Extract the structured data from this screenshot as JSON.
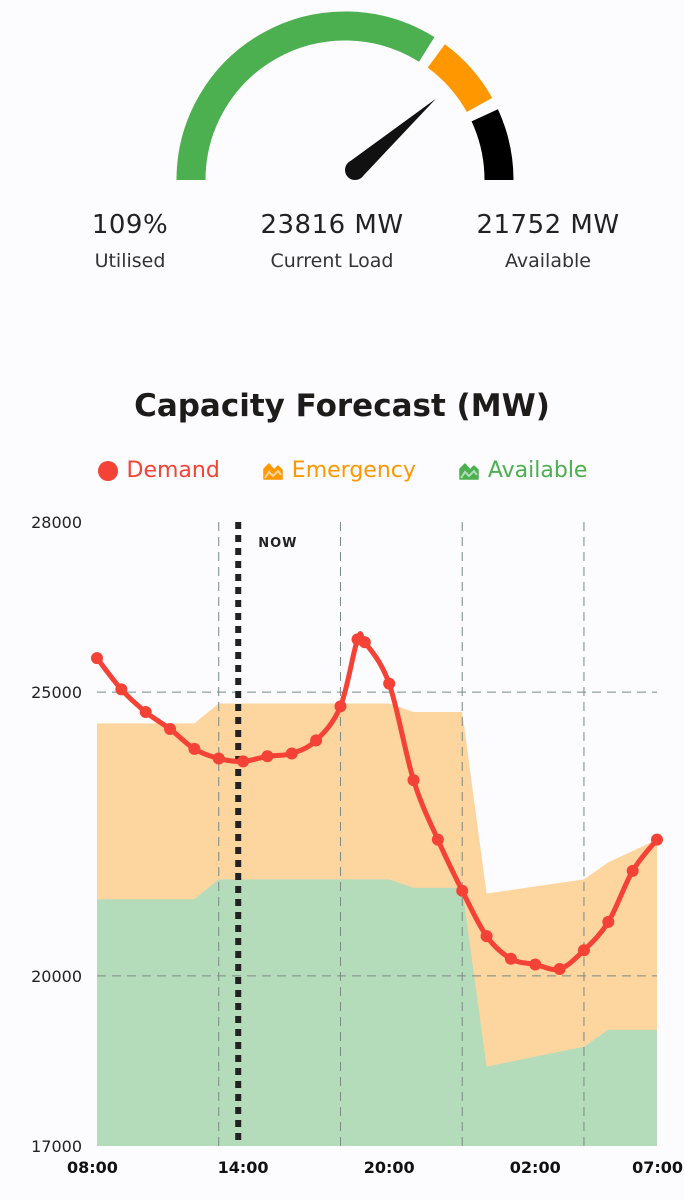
{
  "gauge": {
    "needle_fraction": 0.77,
    "bands": [
      {
        "name": "normal",
        "from": 0.0,
        "to": 0.69,
        "color": "#4caf50"
      },
      {
        "name": "warning",
        "from": 0.69,
        "to": 0.85,
        "color": "#ff9800"
      },
      {
        "name": "critical",
        "from": 0.85,
        "to": 1.0,
        "color": "#000000"
      }
    ]
  },
  "stats": [
    {
      "value": "109%",
      "label": "Utilised"
    },
    {
      "value": "23816 MW",
      "label": "Current Load"
    },
    {
      "value": "21752 MW",
      "label": "Available"
    }
  ],
  "legend": [
    {
      "label": "Demand",
      "color": "#f44336",
      "icon": "circle-icon"
    },
    {
      "label": "Emergency",
      "color": "#ff9800",
      "icon": "area-chart-icon"
    },
    {
      "label": "Available",
      "color": "#4caf50",
      "icon": "area-chart-icon"
    }
  ],
  "chart_data": {
    "type": "area",
    "title": "Capacity Forecast (MW)",
    "ylim": [
      17000,
      28000
    ],
    "yticks": [
      "28000",
      "25000",
      "20000",
      "17000"
    ],
    "ytick_values": [
      28000,
      25000,
      20000,
      17000
    ],
    "xlim": [
      0,
      23
    ],
    "xtick_labels": [
      "08:00",
      "14:00",
      "20:00",
      "02:00",
      "07:00"
    ],
    "xtick_hours": [
      0,
      6,
      12,
      18,
      23
    ],
    "vgrid_hours": [
      5,
      10,
      15,
      20
    ],
    "now_hour": 5.8,
    "now_label": "NOW",
    "colors": {
      "demand": "#f44336",
      "emergency": "#fdd59f",
      "available": "#b5dcba"
    },
    "series": [
      {
        "name": "Demand",
        "x": [
          0,
          1,
          2,
          3,
          4,
          5,
          6,
          7,
          8,
          9,
          10,
          10.7,
          11,
          12,
          13,
          14,
          15,
          16,
          17,
          18,
          19,
          20,
          21,
          22,
          23
        ],
        "values": [
          25600,
          25050,
          24650,
          24350,
          24000,
          23830,
          23780,
          23870,
          23920,
          24150,
          24750,
          25930,
          25880,
          25150,
          23450,
          22400,
          21500,
          20700,
          20300,
          20200,
          20120,
          20450,
          20950,
          21850,
          22400
        ]
      },
      {
        "name": "Emergency",
        "x": [
          0,
          4,
          5,
          10,
          12,
          13,
          15,
          16,
          20,
          21,
          23
        ],
        "values": [
          24450,
          24450,
          24800,
          24800,
          24800,
          24650,
          24650,
          21450,
          21700,
          22000,
          22400
        ]
      },
      {
        "name": "Available",
        "x": [
          0,
          4,
          5,
          10,
          12,
          13,
          15,
          16,
          20,
          21,
          23
        ],
        "values": [
          21350,
          21350,
          21700,
          21700,
          21700,
          21550,
          21550,
          18400,
          18750,
          19050,
          19050
        ]
      }
    ]
  }
}
